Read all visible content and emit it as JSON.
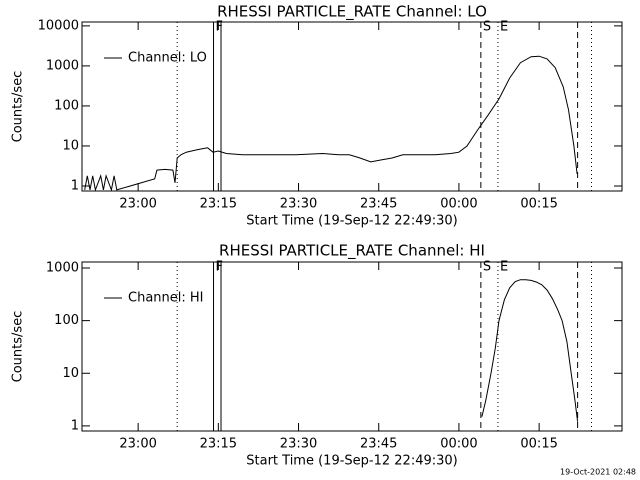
{
  "chart_data": [
    {
      "type": "line",
      "title": "RHESSI PARTICLE_RATE Channel: LO",
      "ylabel": "Counts/sec",
      "xlabel": "Start Time (19-Sep-12 22:49:30)",
      "log_y": true,
      "xlim": [
        0,
        101
      ],
      "ylim": [
        0.75,
        12500
      ],
      "yticks": [
        1,
        10,
        100,
        1000,
        10000
      ],
      "xticks": [
        {
          "value": 10.5,
          "label": "23:00"
        },
        {
          "value": 25.5,
          "label": "23:15"
        },
        {
          "value": 40.5,
          "label": "23:30"
        },
        {
          "value": 55.5,
          "label": "23:45"
        },
        {
          "value": 70.5,
          "label": "00:00"
        },
        {
          "value": 85.5,
          "label": "00:15"
        }
      ],
      "x": [
        0.5,
        1.0,
        1.5,
        2.0,
        2.5,
        3.5,
        4.0,
        4.5,
        5.5,
        6.0,
        6.5,
        13.6,
        14.0,
        15.5,
        17.0,
        17.4,
        17.8,
        18.5,
        19.5,
        20.5,
        21.5,
        22.5,
        23.5,
        24.5,
        25.5,
        27,
        30,
        35,
        40,
        45,
        48,
        50,
        52,
        54,
        56,
        58,
        60,
        63,
        66,
        69,
        70.5,
        72,
        74,
        76,
        78,
        80,
        82,
        84,
        85.5,
        87,
        88.5,
        90,
        91,
        92,
        92.6
      ],
      "series": [
        {
          "name": "Channel: LO",
          "color": "#000000",
          "values": [
            0.8,
            1.8,
            0.8,
            1.8,
            0.8,
            1.8,
            0.8,
            1.8,
            0.8,
            1.8,
            0.8,
            1.5,
            2.5,
            2.6,
            2.5,
            1.2,
            5,
            6,
            7,
            7.5,
            8,
            8.5,
            9,
            7,
            7.5,
            6.5,
            6,
            6,
            6,
            6.5,
            6,
            6,
            5,
            4,
            4.5,
            5,
            6,
            6,
            6,
            6.5,
            7,
            10,
            25,
            60,
            150,
            500,
            1200,
            1700,
            1750,
            1500,
            900,
            300,
            80,
            10,
            2
          ]
        }
      ],
      "vlines": [
        {
          "x": 17.8,
          "style": "dotted"
        },
        {
          "x": 24.6,
          "style": "solid",
          "label": "F"
        },
        {
          "x": 26.0,
          "style": "solid"
        },
        {
          "x": 74.6,
          "style": "dashed",
          "label": "S"
        },
        {
          "x": 77.8,
          "style": "dotted",
          "label": "E"
        },
        {
          "x": 92.7,
          "style": "dashed"
        },
        {
          "x": 95.3,
          "style": "dotted"
        }
      ]
    },
    {
      "type": "line",
      "title": "RHESSI PARTICLE_RATE Channel: HI",
      "ylabel": "Counts/sec",
      "xlabel": "Start Time (19-Sep-12 22:49:30)",
      "log_y": true,
      "xlim": [
        0,
        101
      ],
      "ylim": [
        0.8,
        1300
      ],
      "yticks": [
        1,
        10,
        100,
        1000
      ],
      "xticks": [
        {
          "value": 10.5,
          "label": "23:00"
        },
        {
          "value": 25.5,
          "label": "23:15"
        },
        {
          "value": 40.5,
          "label": "23:30"
        },
        {
          "value": 55.5,
          "label": "23:45"
        },
        {
          "value": 70.5,
          "label": "00:00"
        },
        {
          "value": 85.5,
          "label": "00:15"
        }
      ],
      "x": [
        74.8,
        75.5,
        76.5,
        77.3,
        78,
        79,
        80,
        81,
        82,
        83,
        84,
        85,
        86,
        87,
        88,
        89,
        89.8,
        90.7,
        91.5,
        92.2,
        92.7
      ],
      "series": [
        {
          "name": "Channel: HI",
          "color": "#000000",
          "values": [
            1.5,
            3,
            10,
            30,
            100,
            250,
            420,
            550,
            600,
            600,
            580,
            540,
            480,
            380,
            260,
            160,
            100,
            40,
            10,
            3,
            1.2
          ]
        }
      ],
      "vlines": [
        {
          "x": 17.8,
          "style": "dotted"
        },
        {
          "x": 24.6,
          "style": "solid",
          "label": "F"
        },
        {
          "x": 26.0,
          "style": "solid"
        },
        {
          "x": 74.6,
          "style": "dashed",
          "label": "S"
        },
        {
          "x": 77.8,
          "style": "dotted",
          "label": "E"
        },
        {
          "x": 92.7,
          "style": "dashed"
        },
        {
          "x": 95.3,
          "style": "dotted"
        }
      ]
    }
  ],
  "footer": "19-Oct-2021 02:48"
}
